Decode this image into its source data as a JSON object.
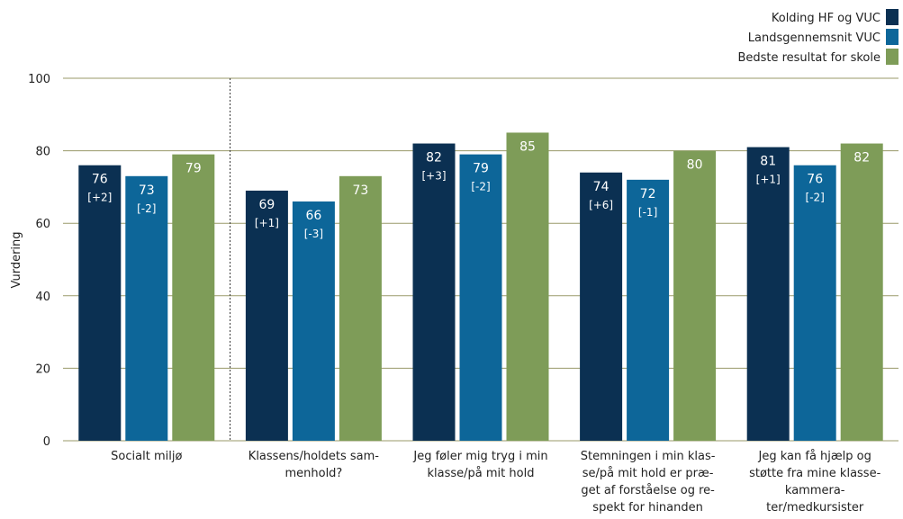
{
  "chart_data": {
    "type": "bar",
    "ylabel": "Vurdering",
    "ylim": [
      0,
      100
    ],
    "yticks": [
      0,
      20,
      40,
      60,
      80,
      100
    ],
    "grid": true,
    "legend_position": "top-right",
    "categories": [
      [
        "Socialt miljø"
      ],
      [
        "Klassens/holdets sam-",
        "menhold?"
      ],
      [
        "Jeg føler mig tryg i min",
        "klasse/på mit hold"
      ],
      [
        "Stemningen i min klas-",
        "se/på mit hold er præ-",
        "get af forståelse og re-",
        "spekt for hinanden"
      ],
      [
        "Jeg kan få hjælp og",
        "støtte fra mine klasse-",
        "kammera-",
        "ter/medkursister"
      ]
    ],
    "series": [
      {
        "name": "Kolding HF og VUC",
        "color": "#0b3052",
        "values": [
          76,
          69,
          82,
          74,
          81
        ],
        "labels": [
          "76",
          "69",
          "82",
          "74",
          "81"
        ],
        "deltas": [
          "[+2]",
          "[+1]",
          "[+3]",
          "[+6]",
          "[+1]"
        ]
      },
      {
        "name": "Landsgennemsnit VUC",
        "color": "#0d6699",
        "values": [
          73,
          66,
          79,
          72,
          76
        ],
        "labels": [
          "73",
          "66",
          "79",
          "72",
          "76"
        ],
        "deltas": [
          "[-2]",
          "[-3]",
          "[-2]",
          "[-1]",
          "[-2]"
        ]
      },
      {
        "name": "Bedste resultat for skole",
        "color": "#7e9c58",
        "values": [
          79,
          73,
          85,
          80,
          82
        ],
        "labels": [
          "79",
          "73",
          "85",
          "80",
          "82"
        ],
        "deltas": [
          "",
          "",
          "",
          "",
          ""
        ]
      }
    ],
    "divider_after_category": 0
  }
}
